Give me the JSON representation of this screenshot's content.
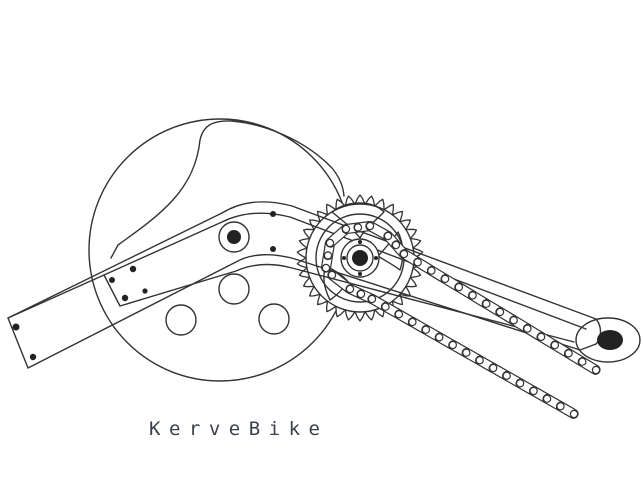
{
  "caption": "KerveBike",
  "colors": {
    "stroke": "#333333",
    "fill_dark": "#222222",
    "background": "#ffffff",
    "caption_text": "#3a3f4a"
  },
  "parts": {
    "cover_disc": "circle",
    "sprocket_teeth": 34,
    "chain_links": "roller-chain",
    "pivot_bolts": 3,
    "lightening_holes": 3
  }
}
